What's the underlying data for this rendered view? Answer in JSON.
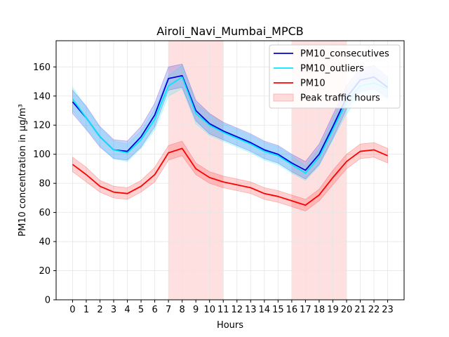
{
  "chart_data": {
    "type": "line",
    "title": "Airoli_Navi_Mumbai_MPCB",
    "xlabel": "Hours",
    "ylabel": "PM10 concentration in µg/m³",
    "x": [
      0,
      1,
      2,
      3,
      4,
      5,
      6,
      7,
      8,
      9,
      10,
      11,
      12,
      13,
      14,
      15,
      16,
      17,
      18,
      19,
      20,
      21,
      22,
      23
    ],
    "xlim": [
      -1.2,
      24.2
    ],
    "ylim": [
      0,
      178
    ],
    "yticks": [
      0,
      20,
      40,
      60,
      80,
      100,
      120,
      140,
      160
    ],
    "grid": true,
    "legend_position": "top-right",
    "shaded_regions": [
      {
        "name": "Peak traffic hours",
        "from": 7,
        "to": 11,
        "color": "#ffcccc"
      },
      {
        "name": "Peak traffic hours",
        "from": 16,
        "to": 20,
        "color": "#ffcccc"
      }
    ],
    "series": [
      {
        "name": "PM10_consecutives",
        "color": "#0000dd",
        "values": [
          136,
          125,
          112,
          103,
          102,
          112,
          127,
          152,
          154,
          130,
          121,
          116,
          112,
          108,
          103,
          100,
          94,
          89,
          100,
          119,
          139,
          151,
          153,
          146
        ],
        "lower": [
          128,
          117,
          105,
          97,
          96,
          105,
          119,
          144,
          146,
          123,
          114,
          110,
          106,
          102,
          97,
          94,
          88,
          83,
          93,
          111,
          131,
          143,
          145,
          139
        ],
        "upper": [
          144,
          133,
          119,
          110,
          109,
          119,
          135,
          160,
          162,
          137,
          128,
          122,
          118,
          114,
          109,
          106,
          100,
          95,
          107,
          127,
          147,
          159,
          161,
          153
        ]
      },
      {
        "name": "PM10_outliers",
        "color": "#00e8ff",
        "values": [
          138,
          125,
          112,
          103,
          101,
          110,
          124,
          147,
          153,
          128,
          120,
          115,
          111,
          107,
          102,
          99,
          93,
          87,
          98,
          117,
          136,
          147,
          149,
          145
        ],
        "lower": [
          130,
          118,
          106,
          97,
          95,
          104,
          117,
          140,
          145,
          121,
          113,
          109,
          105,
          101,
          96,
          93,
          87,
          82,
          92,
          110,
          128,
          140,
          142,
          138
        ],
        "upper": [
          146,
          132,
          118,
          109,
          107,
          116,
          131,
          154,
          161,
          135,
          127,
          121,
          117,
          113,
          108,
          105,
          99,
          92,
          104,
          124,
          144,
          154,
          156,
          152
        ]
      },
      {
        "name": "PM10",
        "color": "#ff0000",
        "values": [
          93,
          86,
          78,
          74,
          73,
          78,
          86,
          101,
          104,
          90,
          84,
          81,
          79,
          77,
          73,
          71,
          68,
          65,
          72,
          84,
          95,
          102,
          103,
          99
        ],
        "lower": [
          88,
          81,
          74,
          70,
          69,
          74,
          81,
          96,
          99,
          86,
          80,
          77,
          75,
          73,
          69,
          67,
          64,
          61,
          68,
          79,
          90,
          97,
          98,
          94
        ],
        "upper": [
          98,
          91,
          82,
          78,
          77,
          82,
          91,
          106,
          109,
          94,
          88,
          85,
          83,
          81,
          77,
          75,
          72,
          69,
          76,
          89,
          100,
          107,
          108,
          104
        ]
      }
    ],
    "legend": [
      {
        "label": "PM10_consecutives",
        "kind": "line",
        "color": "#0000dd"
      },
      {
        "label": "PM10_outliers",
        "kind": "line",
        "color": "#00e8ff"
      },
      {
        "label": "PM10",
        "kind": "line",
        "color": "#ff0000"
      },
      {
        "label": "Peak traffic hours",
        "kind": "patch",
        "color": "#ffcccc"
      }
    ]
  }
}
